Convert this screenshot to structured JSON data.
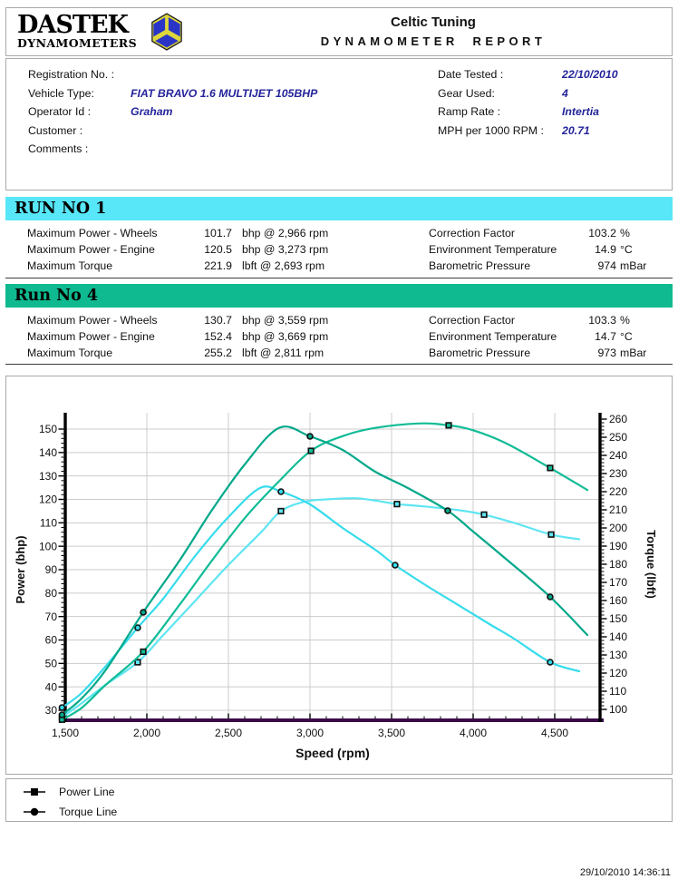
{
  "header": {
    "logo_line1": "DASTEK",
    "logo_line2": "DYNAMOMETERS",
    "company": "Celtic Tuning",
    "report_title": "DYNAMOMETER REPORT"
  },
  "info": {
    "left": [
      {
        "label": "Registration No. :",
        "value": ""
      },
      {
        "label": "Vehicle Type:",
        "value": "FIAT BRAVO 1.6 MULTIJET 105BHP"
      },
      {
        "label": "Operator Id :",
        "value": "Graham"
      },
      {
        "label": "Customer :",
        "value": ""
      },
      {
        "label": "Comments :",
        "value": ""
      }
    ],
    "right": [
      {
        "label": "Date Tested :",
        "value": "22/10/2010"
      },
      {
        "label": "Gear Used:",
        "value": "4"
      },
      {
        "label": "Ramp Rate :",
        "value": "Intertia"
      },
      {
        "label": "MPH per 1000 RPM :",
        "value": "20.71"
      }
    ]
  },
  "runs": [
    {
      "title": "RUN NO 1",
      "bar_color": "#57e7f8",
      "metrics": [
        {
          "label": "Maximum Power - Wheels",
          "value": "101.7",
          "unit": "bhp @ 2,966 rpm"
        },
        {
          "label": "Maximum Power - Engine",
          "value": "120.5",
          "unit": "bhp @ 3,273 rpm"
        },
        {
          "label": "Maximum Torque",
          "value": "221.9",
          "unit": "lbft @ 2,693 rpm"
        }
      ],
      "conditions": [
        {
          "label": "Correction Factor",
          "value": "103.2",
          "unit": "%"
        },
        {
          "label": "Environment Temperature",
          "value": "14.9",
          "unit": "°C"
        },
        {
          "label": "Barometric Pressure",
          "value": "974",
          "unit": "mBar"
        }
      ]
    },
    {
      "title": "Run No 4",
      "bar_color": "#0fba90",
      "metrics": [
        {
          "label": "Maximum Power - Wheels",
          "value": "130.7",
          "unit": "bhp @ 3,559 rpm"
        },
        {
          "label": "Maximum Power - Engine",
          "value": "152.4",
          "unit": "bhp @ 3,669 rpm"
        },
        {
          "label": "Maximum Torque",
          "value": "255.2",
          "unit": "lbft @ 2,811 rpm"
        }
      ],
      "conditions": [
        {
          "label": "Correction Factor",
          "value": "103.3",
          "unit": "%"
        },
        {
          "label": "Environment Temperature",
          "value": "14.7",
          "unit": "°C"
        },
        {
          "label": "Barometric Pressure",
          "value": "973",
          "unit": "mBar"
        }
      ]
    }
  ],
  "legend": [
    {
      "marker": "square",
      "label": "Power Line"
    },
    {
      "marker": "circle",
      "label": "Torque Line"
    }
  ],
  "footer": {
    "timestamp": "29/10/2010 14:36:11"
  },
  "colors": {
    "value_text": "#24249b",
    "run1_bar": "#57e7f8",
    "run4_bar": "#0fba90",
    "x_axis": "#3a0d49",
    "grid": "#cccccc",
    "logo_blue": "#2a35c8",
    "logo_yellow": "#ddd63a"
  },
  "chart_data": {
    "type": "line",
    "xlabel": "Speed (rpm)",
    "ylabel_left": "Power (bhp)",
    "ylabel_right": "Torque (lbft)",
    "xlim": [
      1500,
      4778
    ],
    "ylim_left": [
      25,
      157
    ],
    "ylim_right": [
      93,
      264
    ],
    "grid": true,
    "x_ticks": [
      {
        "v": 1500,
        "label": "1,500"
      },
      {
        "v": 2000,
        "label": "2,000"
      },
      {
        "v": 2500,
        "label": "2,500"
      },
      {
        "v": 3000,
        "label": "3,000"
      },
      {
        "v": 3500,
        "label": "3,500"
      },
      {
        "v": 4000,
        "label": "4,000"
      },
      {
        "v": 4500,
        "label": "4,500"
      }
    ],
    "y_ticks_left": [
      30,
      40,
      50,
      60,
      70,
      80,
      90,
      100,
      110,
      120,
      130,
      140,
      150
    ],
    "y_ticks_right": [
      100,
      110,
      120,
      130,
      140,
      150,
      160,
      170,
      180,
      190,
      200,
      210,
      220,
      230,
      240,
      250,
      260
    ],
    "series": [
      {
        "name": "Run 1 Power Line",
        "axis": "power",
        "marker": "square",
        "color": "#5fe5f2",
        "points": [
          [
            1480,
            27
          ],
          [
            1600,
            33
          ],
          [
            1750,
            41
          ],
          [
            1944,
            50.5
          ],
          [
            2100,
            62
          ],
          [
            2300,
            77
          ],
          [
            2500,
            92
          ],
          [
            2700,
            106
          ],
          [
            2822,
            115
          ],
          [
            2966,
            119
          ],
          [
            3100,
            120
          ],
          [
            3273,
            120.5
          ],
          [
            3400,
            119.5
          ],
          [
            3533,
            118
          ],
          [
            3700,
            117
          ],
          [
            3900,
            115.5
          ],
          [
            4067,
            113.5
          ],
          [
            4250,
            110
          ],
          [
            4478,
            105
          ],
          [
            4650,
            103
          ]
        ],
        "marker_rpms": [
          1480,
          1944,
          2822,
          3533,
          4067,
          4478
        ]
      },
      {
        "name": "Run 1 Torque Line",
        "axis": "torque",
        "marker": "circle",
        "color": "#36dcec",
        "points": [
          [
            1480,
            101
          ],
          [
            1600,
            109
          ],
          [
            1750,
            124
          ],
          [
            1944,
            145
          ],
          [
            2100,
            161
          ],
          [
            2300,
            185
          ],
          [
            2500,
            206
          ],
          [
            2693,
            222
          ],
          [
            2822,
            220
          ],
          [
            3000,
            213
          ],
          [
            3200,
            200
          ],
          [
            3400,
            188
          ],
          [
            3522,
            179.5
          ],
          [
            3700,
            169
          ],
          [
            3900,
            158
          ],
          [
            4100,
            147
          ],
          [
            4250,
            139
          ],
          [
            4472,
            126
          ],
          [
            4650,
            121
          ]
        ],
        "marker_rpms": [
          1480,
          1944,
          2822,
          3522,
          4472
        ]
      },
      {
        "name": "Run 4 Power Line",
        "axis": "power",
        "marker": "square",
        "color": "#10bc96",
        "points": [
          [
            1480,
            26
          ],
          [
            1600,
            31
          ],
          [
            1750,
            41
          ],
          [
            1978,
            55
          ],
          [
            2200,
            75
          ],
          [
            2400,
            94
          ],
          [
            2600,
            112
          ],
          [
            2800,
            127
          ],
          [
            3006,
            140.7
          ],
          [
            3200,
            147
          ],
          [
            3400,
            150.5
          ],
          [
            3669,
            152.4
          ],
          [
            3850,
            151.6
          ],
          [
            4000,
            149.5
          ],
          [
            4200,
            144
          ],
          [
            4472,
            133.4
          ],
          [
            4700,
            124
          ]
        ],
        "marker_rpms": [
          1480,
          1978,
          3006,
          3850,
          4472
        ]
      },
      {
        "name": "Run 4 Torque Line",
        "axis": "torque",
        "marker": "circle",
        "color": "#00a88a",
        "points": [
          [
            1480,
            97
          ],
          [
            1600,
            106
          ],
          [
            1750,
            122
          ],
          [
            1978,
            153.5
          ],
          [
            2200,
            182
          ],
          [
            2400,
            210
          ],
          [
            2600,
            235
          ],
          [
            2811,
            255.2
          ],
          [
            3000,
            250.5
          ],
          [
            3200,
            243
          ],
          [
            3400,
            231
          ],
          [
            3600,
            222
          ],
          [
            3844,
            209.5
          ],
          [
            4000,
            198
          ],
          [
            4200,
            183
          ],
          [
            4472,
            162
          ],
          [
            4700,
            141
          ]
        ],
        "marker_rpms": [
          1480,
          1978,
          3000,
          3844,
          4472
        ]
      }
    ]
  }
}
